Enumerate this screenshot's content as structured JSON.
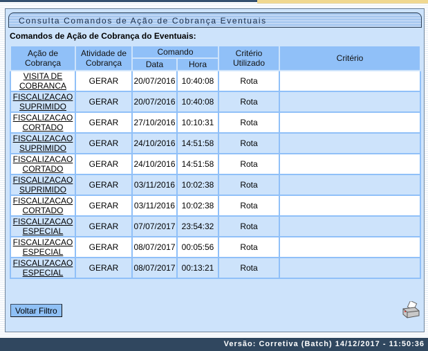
{
  "panel": {
    "title": "Consulta Comandos de Ação de Cobrança Eventuais",
    "subtitle": "Comandos de Ação de Cobrança do Eventuais:"
  },
  "table": {
    "headers": {
      "acao": "Ação de Cobrança",
      "atividade": "Atividade de Cobrança",
      "comando": "Comando",
      "data": "Data",
      "hora": "Hora",
      "criterio_utilizado": "Critério Utilizado",
      "criterio": "Critério"
    },
    "rows": [
      {
        "acao": "VISITA DE COBRANCA",
        "atividade": "GERAR",
        "data": "20/07/2016",
        "hora": "10:40:08",
        "criterio_utilizado": "Rota",
        "criterio": ""
      },
      {
        "acao": "FISCALIZACAO SUPRIMIDO",
        "atividade": "GERAR",
        "data": "20/07/2016",
        "hora": "10:40:08",
        "criterio_utilizado": "Rota",
        "criterio": ""
      },
      {
        "acao": "FISCALIZACAO CORTADO",
        "atividade": "GERAR",
        "data": "27/10/2016",
        "hora": "10:10:31",
        "criterio_utilizado": "Rota",
        "criterio": ""
      },
      {
        "acao": "FISCALIZACAO SUPRIMIDO",
        "atividade": "GERAR",
        "data": "24/10/2016",
        "hora": "14:51:58",
        "criterio_utilizado": "Rota",
        "criterio": ""
      },
      {
        "acao": "FISCALIZACAO CORTADO",
        "atividade": "GERAR",
        "data": "24/10/2016",
        "hora": "14:51:58",
        "criterio_utilizado": "Rota",
        "criterio": ""
      },
      {
        "acao": "FISCALIZACAO SUPRIMIDO",
        "atividade": "GERAR",
        "data": "03/11/2016",
        "hora": "10:02:38",
        "criterio_utilizado": "Rota",
        "criterio": ""
      },
      {
        "acao": "FISCALIZACAO CORTADO",
        "atividade": "GERAR",
        "data": "03/11/2016",
        "hora": "10:02:38",
        "criterio_utilizado": "Rota",
        "criterio": ""
      },
      {
        "acao": "FISCALIZACAO ESPECIAL",
        "atividade": "GERAR",
        "data": "07/07/2017",
        "hora": "23:54:32",
        "criterio_utilizado": "Rota",
        "criterio": ""
      },
      {
        "acao": "FISCALIZACAO ESPECIAL",
        "atividade": "GERAR",
        "data": "08/07/2017",
        "hora": "00:05:56",
        "criterio_utilizado": "Rota",
        "criterio": ""
      },
      {
        "acao": "FISCALIZACAO ESPECIAL",
        "atividade": "GERAR",
        "data": "08/07/2017",
        "hora": "00:13:21",
        "criterio_utilizado": "Rota",
        "criterio": ""
      }
    ]
  },
  "actions": {
    "voltar_label": "Voltar Filtro",
    "print_icon": "printer-icon"
  },
  "footer": {
    "version": "Versão: Corretiva (Batch) 14/12/2017 - 11:50:36"
  }
}
